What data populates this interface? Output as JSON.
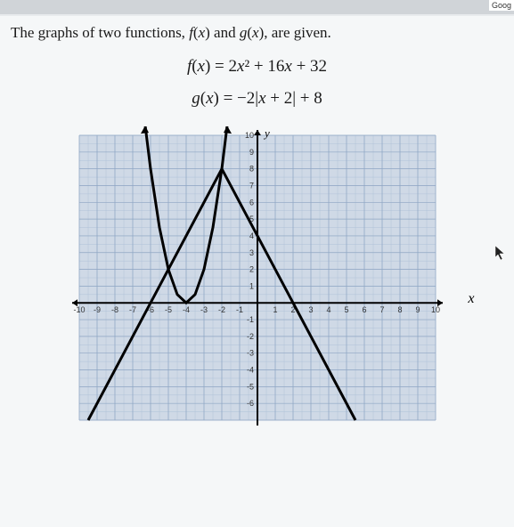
{
  "topBadge": "Goog",
  "prompt": "The graphs of two functions, f(x) and g(x), are given.",
  "equation_f": "f(x) = 2x² + 16x + 32",
  "equation_g": "g(x) = −2|x + 2| + 8",
  "axis_x_label": "x",
  "axis_y_label": "y",
  "chart": {
    "type": "line",
    "xlim": [
      -10,
      10
    ],
    "ylim": [
      -7,
      10
    ],
    "xtick_step": 1,
    "ytick_step": 1,
    "x_ticks": [
      -10,
      -9,
      -8,
      -7,
      -6,
      -5,
      -4,
      -3,
      -2,
      -1,
      1,
      2,
      3,
      4,
      5,
      6,
      7,
      8,
      9,
      10
    ],
    "y_ticks": [
      -6,
      -5,
      -4,
      -3,
      -2,
      -1,
      1,
      2,
      3,
      4,
      5,
      6,
      7,
      8,
      9,
      10
    ],
    "background_color": "#cfd9e6",
    "grid_major_color": "#8fa6c4",
    "grid_minor_color": "#b0c2d8",
    "axis_color": "#000000",
    "tick_fontsize": 9,
    "series": {
      "f": {
        "color": "#000000",
        "width": 3,
        "points": [
          [
            -6.3,
            10.58
          ],
          [
            -6,
            8
          ],
          [
            -5.5,
            4.5
          ],
          [
            -5,
            2
          ],
          [
            -4.5,
            0.5
          ],
          [
            -4,
            0
          ],
          [
            -3.5,
            0.5
          ],
          [
            -3,
            2
          ],
          [
            -2.5,
            4.5
          ],
          [
            -2,
            8
          ],
          [
            -1.7,
            10.58
          ]
        ]
      },
      "g": {
        "color": "#000000",
        "width": 3,
        "points": [
          [
            -9.5,
            -7
          ],
          [
            -2,
            8
          ],
          [
            5.5,
            -7
          ]
        ]
      }
    }
  }
}
